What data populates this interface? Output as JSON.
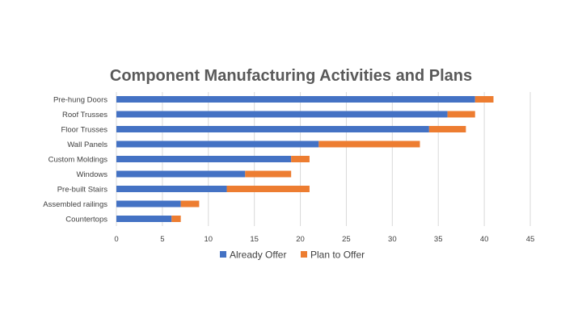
{
  "chart_data": {
    "type": "bar",
    "orientation": "horizontal",
    "stacked": true,
    "title": "Component Manufacturing Activities and Plans",
    "xlabel": "",
    "ylabel": "",
    "categories": [
      "Pre-hung Doors",
      "Roof Trusses",
      "Floor Trusses",
      "Wall Panels",
      "Custom Moldings",
      "Windows",
      "Pre-built Stairs",
      "Assembled railings",
      "Countertops"
    ],
    "series": [
      {
        "name": "Already Offer",
        "color": "#4472C4",
        "values": [
          39,
          36,
          34,
          22,
          19,
          14,
          12,
          7,
          6
        ]
      },
      {
        "name": "Plan to Offer",
        "color": "#ED7D31",
        "values": [
          2,
          3,
          4,
          11,
          2,
          5,
          9,
          2,
          1
        ]
      }
    ],
    "xlim": [
      0,
      45
    ],
    "xticks": [
      0,
      5,
      10,
      15,
      20,
      25,
      30,
      35,
      40,
      45
    ],
    "grid": true,
    "legend_position": "bottom"
  }
}
